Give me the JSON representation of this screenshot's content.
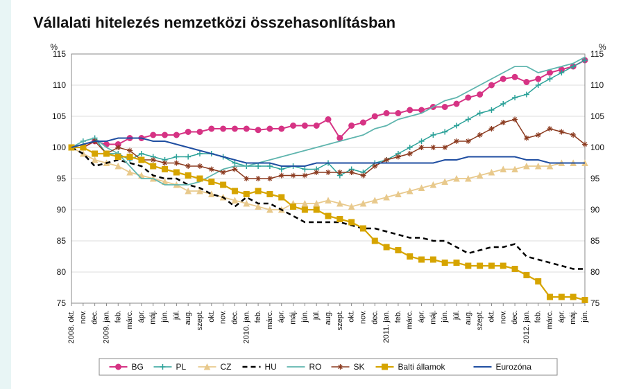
{
  "chart": {
    "type": "line",
    "title": "Vállalati hitelezés nemzetközi összehasonlításban",
    "y_unit_left": "%",
    "y_unit_right": "%",
    "ylim": [
      75,
      115
    ],
    "ytick_step": 5,
    "background_color": "#ffffff",
    "grid_color": "#dcdcdc",
    "axis_color": "#888888",
    "title_fontsize": 22,
    "tick_fontsize": 12,
    "x_labels": [
      "2008. okt.",
      "nov.",
      "dec.",
      "2009. jan.",
      "feb.",
      "márc.",
      "ápr.",
      "máj.",
      "jún.",
      "júl.",
      "aug.",
      "szept.",
      "okt.",
      "nov.",
      "dec.",
      "2010. jan.",
      "feb.",
      "márc.",
      "ápr.",
      "máj.",
      "jún.",
      "júl.",
      "aug.",
      "szept.",
      "okt.",
      "nov.",
      "dec.",
      "2011. jan.",
      "feb.",
      "márc.",
      "ápr.",
      "máj.",
      "jún.",
      "júl.",
      "aug.",
      "szept.",
      "okt.",
      "nov.",
      "dec.",
      "2012. jan.",
      "feb.",
      "márc.",
      "ápr.",
      "máj.",
      "jún."
    ],
    "series": [
      {
        "id": "BG",
        "label": "BG",
        "color": "#d63384",
        "line_width": 2,
        "marker": "circle",
        "marker_size": 4,
        "dash": "none",
        "values": [
          100,
          100,
          101,
          100.5,
          100.5,
          101.5,
          101.5,
          102,
          102,
          102,
          102.5,
          102.5,
          103,
          103,
          103,
          103,
          102.8,
          103,
          103,
          103.5,
          103.5,
          103.5,
          104.5,
          101.5,
          103.5,
          104,
          105,
          105.5,
          105.5,
          106,
          106,
          106.5,
          106.5,
          107,
          108,
          108.5,
          110,
          111,
          111.3,
          110.5,
          111,
          112,
          112.5,
          113,
          114
        ]
      },
      {
        "id": "PL",
        "label": "PL",
        "color": "#2aa198",
        "line_width": 1.5,
        "marker": "plus",
        "marker_size": 4,
        "dash": "none",
        "values": [
          100,
          101,
          101.5,
          99,
          99,
          98,
          99,
          98.5,
          98,
          98.5,
          98.5,
          99,
          99,
          98.5,
          97.5,
          97,
          97,
          97,
          96.5,
          97,
          96.5,
          96.5,
          97.5,
          95.5,
          96.5,
          96,
          97.5,
          98,
          99,
          100,
          101,
          102,
          102.5,
          103.5,
          104.5,
          105.5,
          106,
          107,
          108,
          108.5,
          110,
          111,
          112,
          113,
          114
        ]
      },
      {
        "id": "CZ",
        "label": "CZ",
        "color": "#e8c98c",
        "line_width": 1.8,
        "marker": "triangle",
        "marker_size": 4,
        "dash": "none",
        "values": [
          100,
          99,
          98,
          97.5,
          97,
          96,
          95.5,
          95,
          94.5,
          94,
          93,
          93,
          92.5,
          92,
          91.5,
          91,
          90.5,
          90,
          90,
          91,
          91,
          91,
          91.5,
          91,
          90.5,
          91,
          91.5,
          92,
          92.5,
          93,
          93.5,
          94,
          94.5,
          95,
          95,
          95.5,
          96,
          96.5,
          96.5,
          97,
          97,
          97,
          97.5,
          97.5,
          97.5
        ]
      },
      {
        "id": "HU",
        "label": "HU",
        "color": "#000000",
        "line_width": 2.5,
        "marker": "none",
        "marker_size": 0,
        "dash": "7,5",
        "values": [
          100,
          99,
          97,
          97.5,
          98,
          97.5,
          97,
          95.5,
          95,
          95,
          94,
          93.5,
          92.5,
          92,
          90.5,
          92,
          91,
          91,
          90,
          89,
          88,
          88,
          88,
          88,
          87.5,
          87,
          87,
          86.5,
          86,
          85.5,
          85.5,
          85,
          85,
          84,
          83,
          83.5,
          84,
          84,
          84.5,
          82.5,
          82,
          81.5,
          81,
          80.5,
          80.5
        ]
      },
      {
        "id": "RO",
        "label": "RO",
        "color": "#5fb5ae",
        "line_width": 1.8,
        "marker": "none",
        "marker_size": 0,
        "dash": "none",
        "values": [
          100,
          101,
          101.5,
          100,
          99,
          97,
          95,
          95,
          94,
          94,
          94,
          94.5,
          95.5,
          96.5,
          97,
          97,
          97.5,
          98,
          98.5,
          99,
          99.5,
          100,
          100.5,
          101,
          101.5,
          102,
          103,
          103.5,
          104.5,
          105,
          105.5,
          106.5,
          107.5,
          108,
          109,
          110,
          111,
          112,
          113,
          113,
          112,
          112.5,
          113,
          113.5,
          114.5
        ]
      },
      {
        "id": "SK",
        "label": "SK",
        "color": "#8b3a1f",
        "line_width": 1.5,
        "marker": "star",
        "marker_size": 4,
        "dash": "none",
        "values": [
          100,
          100,
          101,
          99,
          100,
          99.5,
          98,
          98,
          97.5,
          97.5,
          97,
          97,
          96.5,
          96,
          96.5,
          95,
          95,
          95,
          95.5,
          95.5,
          95.5,
          96,
          96,
          96,
          96,
          95.5,
          97,
          98,
          98.5,
          99,
          100,
          100,
          100,
          101,
          101,
          102,
          103,
          104,
          104.5,
          101.5,
          102,
          103,
          102.5,
          102,
          100.5
        ]
      },
      {
        "id": "Baltic",
        "label": "Balti államok",
        "color": "#d6a400",
        "line_width": 2.2,
        "marker": "square",
        "marker_size": 4,
        "dash": "none",
        "values": [
          100,
          100,
          99,
          99,
          98.5,
          98.5,
          98,
          97,
          96.5,
          96,
          95.5,
          95,
          94.5,
          94,
          93,
          92.5,
          93,
          92.5,
          92,
          90.5,
          90,
          90,
          89,
          88.5,
          88,
          87,
          85,
          84,
          83.5,
          82.5,
          82,
          82,
          81.5,
          81.5,
          81,
          81,
          81,
          81,
          80.5,
          79.5,
          78.5,
          76,
          76,
          76,
          75.5
        ]
      },
      {
        "id": "Eurozone",
        "label": "Eurozóna",
        "color": "#1f4ea1",
        "line_width": 2,
        "marker": "none",
        "marker_size": 0,
        "dash": "none",
        "values": [
          100,
          100.5,
          101,
          101,
          101.5,
          101.5,
          101.5,
          101,
          101,
          100.5,
          100,
          99.5,
          99,
          98.5,
          98,
          97.5,
          97.5,
          97.5,
          97,
          97,
          97,
          97.5,
          97.5,
          97.5,
          97.5,
          97.5,
          97.5,
          97.5,
          97.5,
          97.5,
          97.5,
          97.5,
          98,
          98,
          98.5,
          98.5,
          98.5,
          98.5,
          98.5,
          98,
          98,
          97.5,
          97.5,
          97.5,
          97.5
        ]
      }
    ],
    "legend": {
      "border_color": "#888888",
      "items": [
        "BG",
        "PL",
        "CZ",
        "HU",
        "RO",
        "SK",
        "Balti államok",
        "Eurozóna"
      ]
    }
  }
}
